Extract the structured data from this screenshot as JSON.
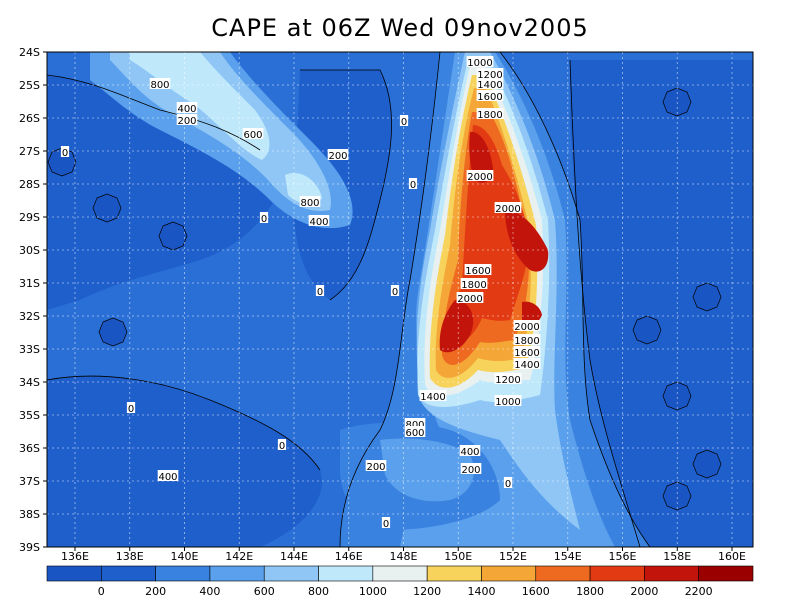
{
  "title": "CAPE at 06Z Wed 09nov2005",
  "map": {
    "lat_labels": [
      "24S",
      "25S",
      "26S",
      "27S",
      "28S",
      "29S",
      "30S",
      "31S",
      "32S",
      "33S",
      "34S",
      "35S",
      "36S",
      "37S",
      "38S",
      "39S"
    ],
    "lon_labels": [
      "136E",
      "138E",
      "140E",
      "142E",
      "144E",
      "146E",
      "148E",
      "150E",
      "152E",
      "154E",
      "156E",
      "158E",
      "160E"
    ],
    "contour_labels": [
      "1000",
      "1200",
      "1400",
      "1600",
      "1800",
      "2000",
      "2000",
      "1600",
      "1800",
      "2000",
      "2000",
      "1800",
      "1600",
      "1400",
      "1200",
      "1000",
      "1400",
      "800",
      "600",
      "400",
      "200",
      "0",
      "800",
      "400",
      "200",
      "600",
      "200",
      "800",
      "400",
      "0",
      "0",
      "0",
      "0",
      "0",
      "0",
      "0",
      "0",
      "400",
      "200",
      "0"
    ],
    "colors": {
      "background": "#2a6fd6",
      "cape_0": "#1e5fcc",
      "cape_200": "#3a82e0",
      "cape_400": "#5aa0ec",
      "cape_600": "#8fc6f5",
      "cape_800": "#bfe8fb",
      "cape_1000": "#e8f0f0",
      "cape_1200": "#f7d35c",
      "cape_1400": "#f4a637",
      "cape_1600": "#ee6a20",
      "cape_1800": "#e23a12",
      "cape_2000": "#c2140a",
      "cape_2200": "#9a0000"
    }
  },
  "colorbar": {
    "labels": [
      "0",
      "200",
      "400",
      "600",
      "800",
      "1000",
      "1200",
      "1400",
      "1600",
      "1800",
      "2000",
      "2200"
    ],
    "colors": [
      "#1a55c4",
      "#1e5fcc",
      "#3a82e0",
      "#5aa0ec",
      "#8fc6f5",
      "#bfe8fb",
      "#e8f0f0",
      "#f7d35c",
      "#f4a637",
      "#ee6a20",
      "#e23a12",
      "#c2140a",
      "#9a0000"
    ]
  }
}
